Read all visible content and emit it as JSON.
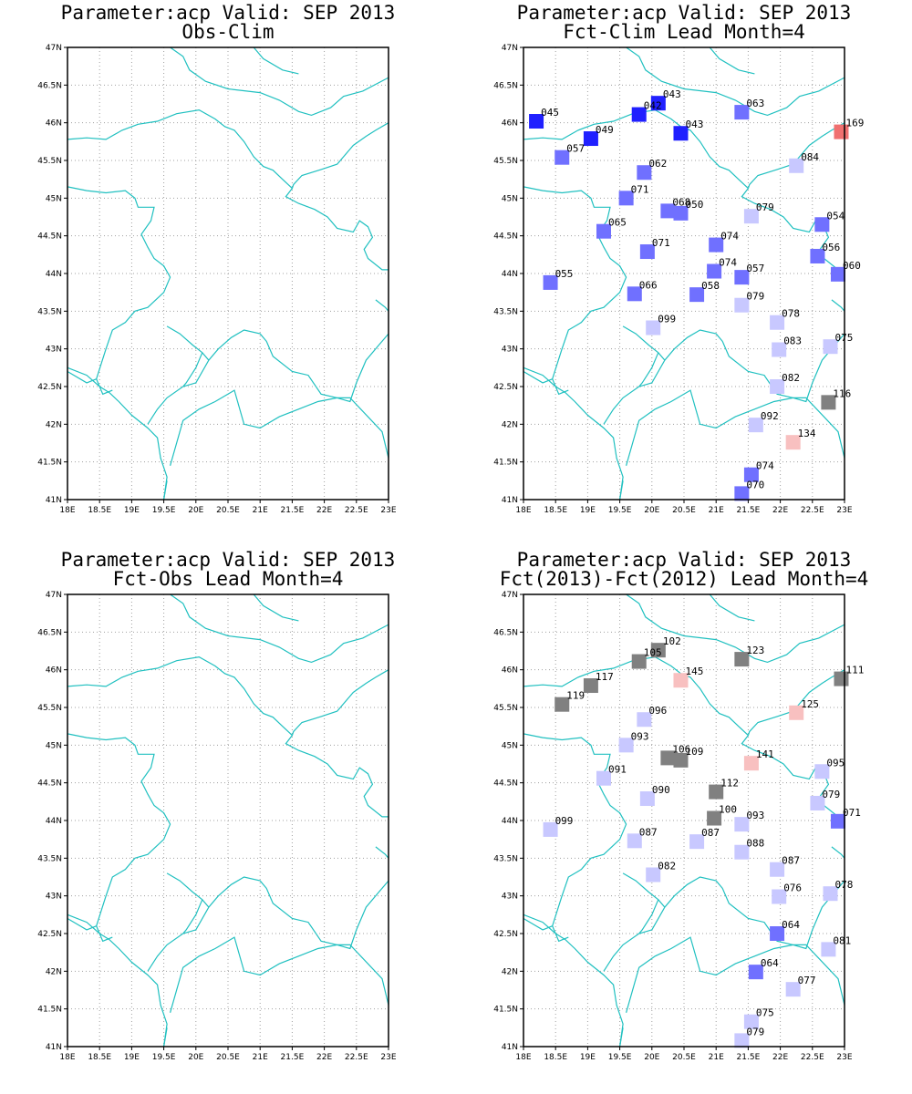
{
  "lon_labels": [
    "18E",
    "18.5E",
    "19E",
    "19.5E",
    "20E",
    "20.5E",
    "21E",
    "21.5E",
    "22E",
    "22.5E",
    "23E"
  ],
  "lat_labels": [
    "41N",
    "41.5N",
    "42N",
    "42.5N",
    "43N",
    "43.5N",
    "44N",
    "44.5N",
    "45N",
    "45.5N",
    "46N",
    "46.5N",
    "47N"
  ],
  "extent": {
    "lon": [
      18,
      23
    ],
    "lat": [
      41,
      47
    ]
  },
  "colors": {
    "coastline": "#20c0c0",
    "grid": "#a0a0a0",
    "dark_blue": "#2020ff",
    "mid_blue": "#7070ff",
    "light_blue": "#c8c8ff",
    "salmon": "#f07070",
    "pink": "#f8c0c0",
    "gray": "#808080"
  },
  "panels": [
    {
      "title1": "Parameter:acp Valid: SEP 2013",
      "title2": "Obs-Clim",
      "stations": []
    },
    {
      "title1": "Parameter:acp Valid: SEP 2013",
      "title2": "Fct-Clim Lead Month=4",
      "stations": [
        {
          "lon": 18.2,
          "lat": 46.02,
          "label": "045",
          "color": "#2020ff"
        },
        {
          "lon": 20.1,
          "lat": 46.26,
          "label": "043",
          "color": "#2020ff"
        },
        {
          "lon": 19.8,
          "lat": 46.11,
          "label": "042",
          "color": "#2020ff"
        },
        {
          "lon": 20.45,
          "lat": 45.86,
          "label": "043",
          "color": "#2020ff"
        },
        {
          "lon": 21.4,
          "lat": 46.14,
          "label": "063",
          "color": "#7070ff"
        },
        {
          "lon": 22.95,
          "lat": 45.88,
          "label": "169",
          "color": "#f07070"
        },
        {
          "lon": 19.05,
          "lat": 45.79,
          "label": "049",
          "color": "#2020ff"
        },
        {
          "lon": 18.6,
          "lat": 45.54,
          "label": "057",
          "color": "#7070ff"
        },
        {
          "lon": 19.88,
          "lat": 45.34,
          "label": "062",
          "color": "#7070ff"
        },
        {
          "lon": 22.25,
          "lat": 45.43,
          "label": "084",
          "color": "#c8c8ff"
        },
        {
          "lon": 19.6,
          "lat": 45.0,
          "label": "071",
          "color": "#7070ff"
        },
        {
          "lon": 20.25,
          "lat": 44.83,
          "label": "068",
          "color": "#7070ff"
        },
        {
          "lon": 20.45,
          "lat": 44.8,
          "label": "050",
          "color": "#7070ff"
        },
        {
          "lon": 21.55,
          "lat": 44.76,
          "label": "079",
          "color": "#c8c8ff"
        },
        {
          "lon": 22.65,
          "lat": 44.65,
          "label": "054",
          "color": "#7070ff"
        },
        {
          "lon": 19.25,
          "lat": 44.56,
          "label": "065",
          "color": "#7070ff"
        },
        {
          "lon": 21.0,
          "lat": 44.38,
          "label": "074",
          "color": "#7070ff"
        },
        {
          "lon": 19.93,
          "lat": 44.29,
          "label": "071",
          "color": "#7070ff"
        },
        {
          "lon": 22.58,
          "lat": 44.23,
          "label": "056",
          "color": "#7070ff"
        },
        {
          "lon": 22.9,
          "lat": 43.99,
          "label": "060",
          "color": "#7070ff"
        },
        {
          "lon": 20.97,
          "lat": 44.03,
          "label": "074",
          "color": "#7070ff"
        },
        {
          "lon": 21.4,
          "lat": 43.95,
          "label": "057",
          "color": "#7070ff"
        },
        {
          "lon": 18.42,
          "lat": 43.88,
          "label": "055",
          "color": "#7070ff"
        },
        {
          "lon": 19.73,
          "lat": 43.73,
          "label": "066",
          "color": "#7070ff"
        },
        {
          "lon": 20.7,
          "lat": 43.72,
          "label": "058",
          "color": "#7070ff"
        },
        {
          "lon": 21.4,
          "lat": 43.58,
          "label": "079",
          "color": "#c8c8ff"
        },
        {
          "lon": 21.95,
          "lat": 43.35,
          "label": "078",
          "color": "#c8c8ff"
        },
        {
          "lon": 20.02,
          "lat": 43.28,
          "label": "099",
          "color": "#c8c8ff"
        },
        {
          "lon": 21.98,
          "lat": 42.99,
          "label": "083",
          "color": "#c8c8ff"
        },
        {
          "lon": 22.78,
          "lat": 43.03,
          "label": "075",
          "color": "#c8c8ff"
        },
        {
          "lon": 21.95,
          "lat": 42.5,
          "label": "082",
          "color": "#c8c8ff"
        },
        {
          "lon": 22.75,
          "lat": 42.29,
          "label": "116",
          "color": "#808080"
        },
        {
          "lon": 21.62,
          "lat": 41.99,
          "label": "092",
          "color": "#c8c8ff"
        },
        {
          "lon": 22.2,
          "lat": 41.76,
          "label": "134",
          "color": "#f8c0c0"
        },
        {
          "lon": 21.55,
          "lat": 41.33,
          "label": "074",
          "color": "#7070ff"
        },
        {
          "lon": 21.4,
          "lat": 41.08,
          "label": "070",
          "color": "#7070ff"
        }
      ]
    },
    {
      "title1": "Parameter:acp Valid: SEP 2013",
      "title2": "Fct-Obs Lead Month=4",
      "stations": []
    },
    {
      "title1": "Parameter:acp Valid: SEP 2013",
      "title2": "Fct(2013)-Fct(2012) Lead Month=4",
      "stations": [
        {
          "lon": 20.1,
          "lat": 46.26,
          "label": "102",
          "color": "#808080"
        },
        {
          "lon": 19.8,
          "lat": 46.11,
          "label": "105",
          "color": "#808080"
        },
        {
          "lon": 21.4,
          "lat": 46.14,
          "label": "123",
          "color": "#808080"
        },
        {
          "lon": 22.95,
          "lat": 45.88,
          "label": "111",
          "color": "#808080"
        },
        {
          "lon": 20.45,
          "lat": 45.86,
          "label": "145",
          "color": "#f8c0c0"
        },
        {
          "lon": 19.05,
          "lat": 45.79,
          "label": "117",
          "color": "#808080"
        },
        {
          "lon": 18.6,
          "lat": 45.54,
          "label": "119",
          "color": "#808080"
        },
        {
          "lon": 22.25,
          "lat": 45.43,
          "label": "125",
          "color": "#f8c0c0"
        },
        {
          "lon": 19.88,
          "lat": 45.34,
          "label": "096",
          "color": "#c8c8ff"
        },
        {
          "lon": 19.6,
          "lat": 45.0,
          "label": "093",
          "color": "#c8c8ff"
        },
        {
          "lon": 20.25,
          "lat": 44.83,
          "label": "106",
          "color": "#808080"
        },
        {
          "lon": 20.45,
          "lat": 44.8,
          "label": "109",
          "color": "#808080"
        },
        {
          "lon": 21.55,
          "lat": 44.76,
          "label": "141",
          "color": "#f8c0c0"
        },
        {
          "lon": 22.65,
          "lat": 44.65,
          "label": "095",
          "color": "#c8c8ff"
        },
        {
          "lon": 19.25,
          "lat": 44.56,
          "label": "091",
          "color": "#c8c8ff"
        },
        {
          "lon": 21.0,
          "lat": 44.38,
          "label": "112",
          "color": "#808080"
        },
        {
          "lon": 19.93,
          "lat": 44.29,
          "label": "090",
          "color": "#c8c8ff"
        },
        {
          "lon": 22.58,
          "lat": 44.23,
          "label": "079",
          "color": "#c8c8ff"
        },
        {
          "lon": 22.9,
          "lat": 43.99,
          "label": "071",
          "color": "#7070ff"
        },
        {
          "lon": 20.97,
          "lat": 44.03,
          "label": "100",
          "color": "#808080"
        },
        {
          "lon": 21.4,
          "lat": 43.95,
          "label": "093",
          "color": "#c8c8ff"
        },
        {
          "lon": 18.42,
          "lat": 43.88,
          "label": "099",
          "color": "#c8c8ff"
        },
        {
          "lon": 19.73,
          "lat": 43.73,
          "label": "087",
          "color": "#c8c8ff"
        },
        {
          "lon": 20.7,
          "lat": 43.72,
          "label": "087",
          "color": "#c8c8ff"
        },
        {
          "lon": 21.4,
          "lat": 43.58,
          "label": "088",
          "color": "#c8c8ff"
        },
        {
          "lon": 21.95,
          "lat": 43.35,
          "label": "087",
          "color": "#c8c8ff"
        },
        {
          "lon": 20.02,
          "lat": 43.28,
          "label": "082",
          "color": "#c8c8ff"
        },
        {
          "lon": 21.98,
          "lat": 42.99,
          "label": "076",
          "color": "#c8c8ff"
        },
        {
          "lon": 22.78,
          "lat": 43.03,
          "label": "078",
          "color": "#c8c8ff"
        },
        {
          "lon": 21.95,
          "lat": 42.5,
          "label": "064",
          "color": "#7070ff"
        },
        {
          "lon": 22.75,
          "lat": 42.29,
          "label": "081",
          "color": "#c8c8ff"
        },
        {
          "lon": 21.62,
          "lat": 41.99,
          "label": "064",
          "color": "#7070ff"
        },
        {
          "lon": 22.2,
          "lat": 41.76,
          "label": "077",
          "color": "#c8c8ff"
        },
        {
          "lon": 21.55,
          "lat": 41.33,
          "label": "075",
          "color": "#c8c8ff"
        },
        {
          "lon": 21.4,
          "lat": 41.08,
          "label": "079",
          "color": "#c8c8ff"
        }
      ]
    }
  ]
}
